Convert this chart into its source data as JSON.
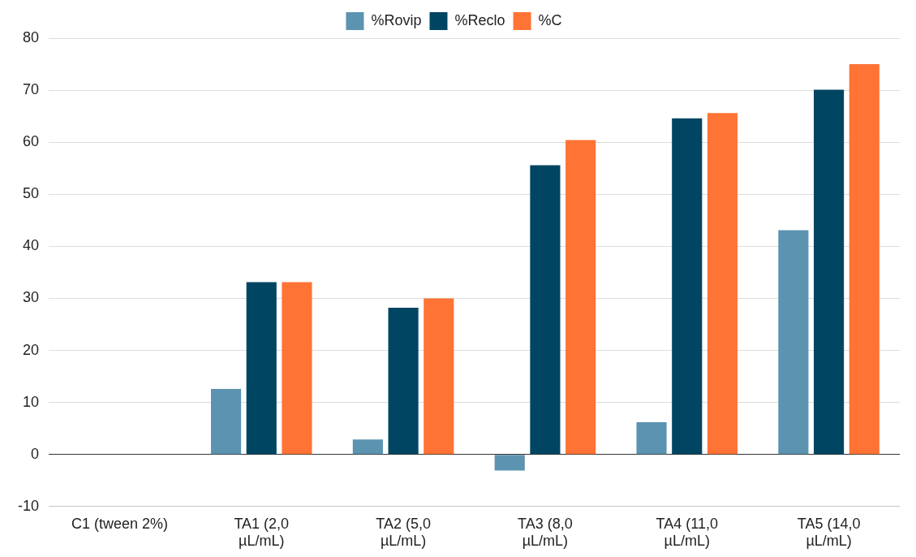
{
  "chart_data": {
    "type": "bar",
    "categories": [
      "C1 (tween 2%)",
      "TA1 (2,0 µL/mL)",
      "TA2 (5,0 µL/mL)",
      "TA3 (8,0 µL/mL)",
      "TA4 (11,0 µL/mL)",
      "TA5 (14,0 µL/mL)"
    ],
    "series": [
      {
        "name": "%Rovip",
        "color": "#5b93b0",
        "values": [
          0,
          12.6,
          2.9,
          -3.1,
          6.2,
          43.1
        ]
      },
      {
        "name": "%Reclo",
        "color": "#004562",
        "values": [
          0,
          33.1,
          28.2,
          55.6,
          64.6,
          70.1
        ]
      },
      {
        "name": "%C",
        "color": "#ff7335",
        "values": [
          0,
          33.1,
          30.0,
          60.4,
          65.6,
          75.0
        ]
      }
    ],
    "ylim": [
      -10,
      80
    ],
    "yticks": [
      -10,
      0,
      10,
      20,
      30,
      40,
      50,
      60,
      70,
      80
    ],
    "grid": "y",
    "legend": "top"
  }
}
